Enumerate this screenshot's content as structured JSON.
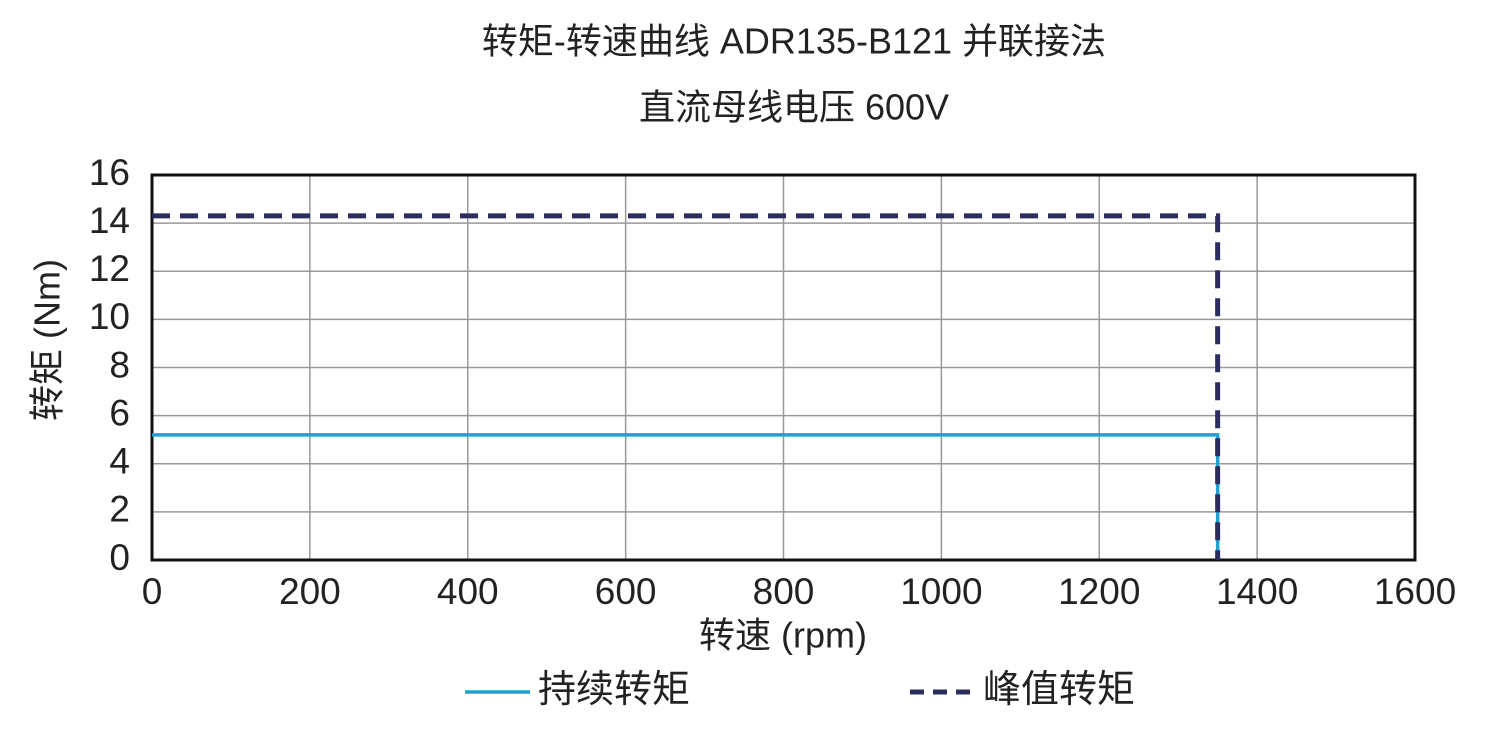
{
  "chart_data": {
    "type": "line",
    "title": "转矩-转速曲线 ADR135-B121 并联接法",
    "subtitle": "直流母线电压 600V",
    "x_label": "转速 (rpm)",
    "y_label": "转矩 (Nm)",
    "x": [
      0,
      1350,
      1350
    ],
    "series": [
      {
        "name": "持续转矩",
        "color": "#1fa0d2",
        "line_style": "solid",
        "values": [
          5.2,
          5.2,
          0
        ]
      },
      {
        "name": "峰值转矩",
        "color": "#2b2d5e",
        "line_style": "dashed",
        "values": [
          14.3,
          14.3,
          0
        ]
      }
    ],
    "xlim": [
      0,
      1600
    ],
    "xticks": [
      0,
      200,
      400,
      600,
      800,
      1000,
      1200,
      1400,
      1600
    ],
    "ylim": [
      0,
      16
    ],
    "yticks": [
      0,
      2,
      4,
      6,
      8,
      10,
      12,
      14,
      16
    ],
    "grid": true,
    "legend_position": "bottom"
  }
}
